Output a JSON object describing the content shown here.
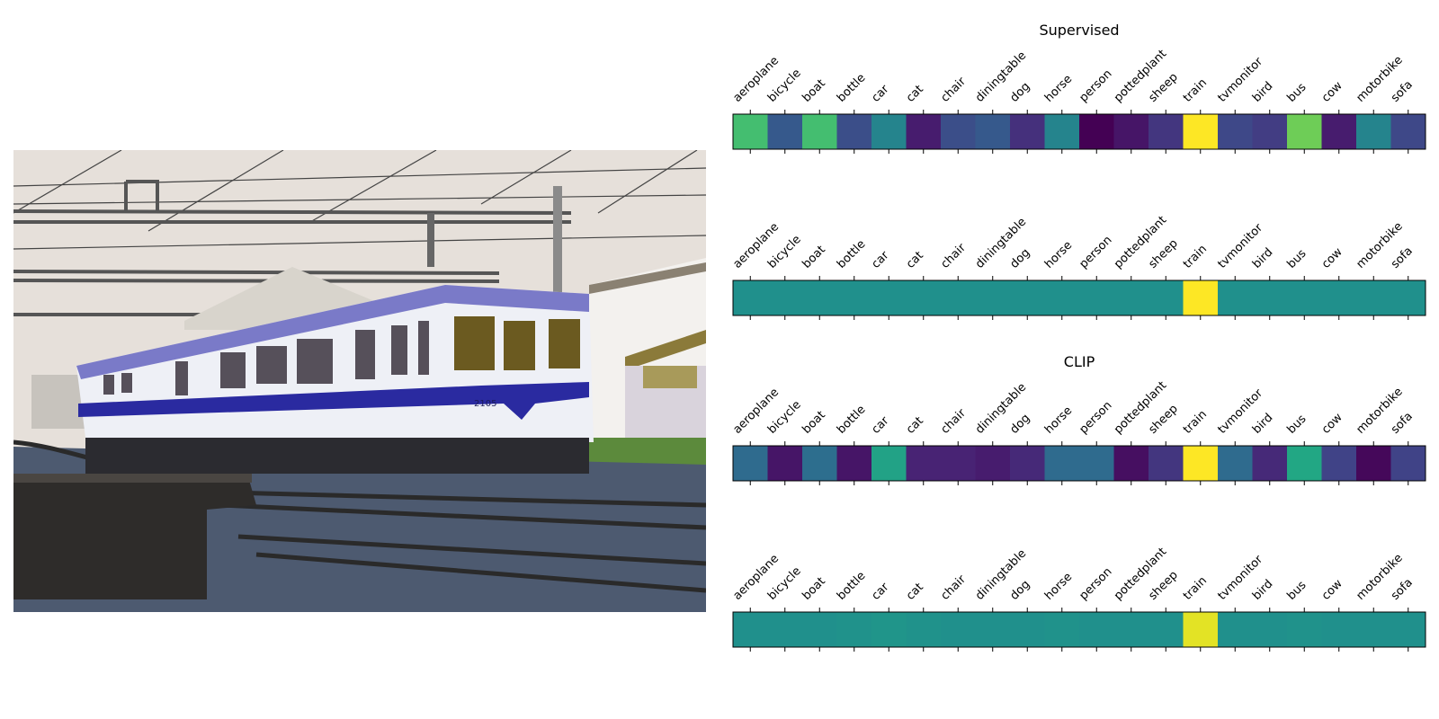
{
  "image_panel": {
    "train_number": "2105"
  },
  "chart_data": [
    {
      "type": "heatmap",
      "title": "Supervised",
      "categories": [
        "aeroplane",
        "bicycle",
        "boat",
        "bottle",
        "car",
        "cat",
        "chair",
        "diningtable",
        "dog",
        "horse",
        "person",
        "pottedplant",
        "sheep",
        "train",
        "tvmonitor",
        "bird",
        "bus",
        "cow",
        "motorbike",
        "sofa"
      ],
      "values": [
        0.7,
        0.28,
        0.7,
        0.24,
        0.45,
        0.08,
        0.24,
        0.28,
        0.14,
        0.45,
        0.0,
        0.06,
        0.16,
        1.0,
        0.22,
        0.18,
        0.78,
        0.08,
        0.45,
        0.22
      ],
      "colormap": "viridis",
      "ylabel_ticks": false
    },
    {
      "type": "heatmap",
      "title": "",
      "categories": [
        "aeroplane",
        "bicycle",
        "boat",
        "bottle",
        "car",
        "cat",
        "chair",
        "diningtable",
        "dog",
        "horse",
        "person",
        "pottedplant",
        "sheep",
        "train",
        "tvmonitor",
        "bird",
        "bus",
        "cow",
        "motorbike",
        "sofa"
      ],
      "values": [
        0.5,
        0.5,
        0.5,
        0.5,
        0.5,
        0.5,
        0.5,
        0.5,
        0.5,
        0.5,
        0.5,
        0.5,
        0.5,
        1.0,
        0.5,
        0.5,
        0.5,
        0.5,
        0.5,
        0.5
      ],
      "colormap": "viridis"
    },
    {
      "type": "heatmap",
      "title": "CLIP",
      "categories": [
        "aeroplane",
        "bicycle",
        "boat",
        "bottle",
        "car",
        "cat",
        "chair",
        "diningtable",
        "dog",
        "horse",
        "person",
        "pottedplant",
        "sheep",
        "train",
        "tvmonitor",
        "bird",
        "bus",
        "cow",
        "motorbike",
        "sofa"
      ],
      "values": [
        0.35,
        0.06,
        0.36,
        0.06,
        0.58,
        0.1,
        0.1,
        0.08,
        0.12,
        0.35,
        0.35,
        0.04,
        0.16,
        1.0,
        0.35,
        0.12,
        0.6,
        0.2,
        0.02,
        0.2
      ],
      "colormap": "viridis"
    },
    {
      "type": "heatmap",
      "title": "",
      "categories": [
        "aeroplane",
        "bicycle",
        "boat",
        "bottle",
        "car",
        "cat",
        "chair",
        "diningtable",
        "dog",
        "horse",
        "person",
        "pottedplant",
        "sheep",
        "train",
        "tvmonitor",
        "bird",
        "bus",
        "cow",
        "motorbike",
        "sofa"
      ],
      "values": [
        0.5,
        0.5,
        0.5,
        0.51,
        0.52,
        0.51,
        0.5,
        0.5,
        0.5,
        0.51,
        0.5,
        0.5,
        0.5,
        0.96,
        0.5,
        0.5,
        0.51,
        0.5,
        0.5,
        0.5
      ],
      "colormap": "viridis"
    }
  ],
  "colors": {
    "sky": "#e6e0da",
    "train_body": "#eef0f6",
    "train_stripe": "#2a2aa0",
    "ballast": "#4d5a70",
    "platform": "#2e2c2a",
    "grass": "#5c8a3c"
  }
}
